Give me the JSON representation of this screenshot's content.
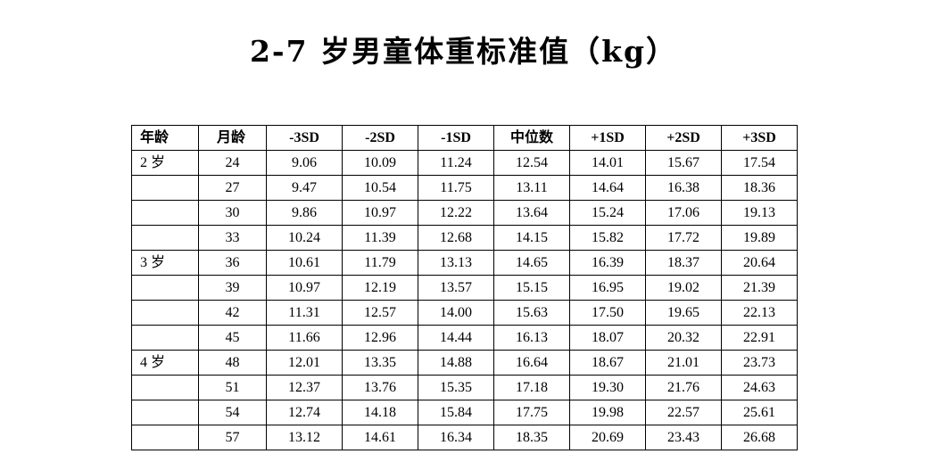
{
  "title": "2-7 岁男童体重标准值（kg）",
  "table": {
    "headers": [
      "年龄",
      "月龄",
      "-3SD",
      "-2SD",
      "-1SD",
      "中位数",
      "+1SD",
      "+2SD",
      "+3SD"
    ],
    "rows": [
      [
        "2 岁",
        "24",
        "9.06",
        "10.09",
        "11.24",
        "12.54",
        "14.01",
        "15.67",
        "17.54"
      ],
      [
        "",
        "27",
        "9.47",
        "10.54",
        "11.75",
        "13.11",
        "14.64",
        "16.38",
        "18.36"
      ],
      [
        "",
        "30",
        "9.86",
        "10.97",
        "12.22",
        "13.64",
        "15.24",
        "17.06",
        "19.13"
      ],
      [
        "",
        "33",
        "10.24",
        "11.39",
        "12.68",
        "14.15",
        "15.82",
        "17.72",
        "19.89"
      ],
      [
        "3 岁",
        "36",
        "10.61",
        "11.79",
        "13.13",
        "14.65",
        "16.39",
        "18.37",
        "20.64"
      ],
      [
        "",
        "39",
        "10.97",
        "12.19",
        "13.57",
        "15.15",
        "16.95",
        "19.02",
        "21.39"
      ],
      [
        "",
        "42",
        "11.31",
        "12.57",
        "14.00",
        "15.63",
        "17.50",
        "19.65",
        "22.13"
      ],
      [
        "",
        "45",
        "11.66",
        "12.96",
        "14.44",
        "16.13",
        "18.07",
        "20.32",
        "22.91"
      ],
      [
        "4 岁",
        "48",
        "12.01",
        "13.35",
        "14.88",
        "16.64",
        "18.67",
        "21.01",
        "23.73"
      ],
      [
        "",
        "51",
        "12.37",
        "13.76",
        "15.35",
        "17.18",
        "19.30",
        "21.76",
        "24.63"
      ],
      [
        "",
        "54",
        "12.74",
        "14.18",
        "15.84",
        "17.75",
        "19.98",
        "22.57",
        "25.61"
      ],
      [
        "",
        "57",
        "13.12",
        "14.61",
        "16.34",
        "18.35",
        "20.69",
        "23.43",
        "26.68"
      ]
    ]
  }
}
